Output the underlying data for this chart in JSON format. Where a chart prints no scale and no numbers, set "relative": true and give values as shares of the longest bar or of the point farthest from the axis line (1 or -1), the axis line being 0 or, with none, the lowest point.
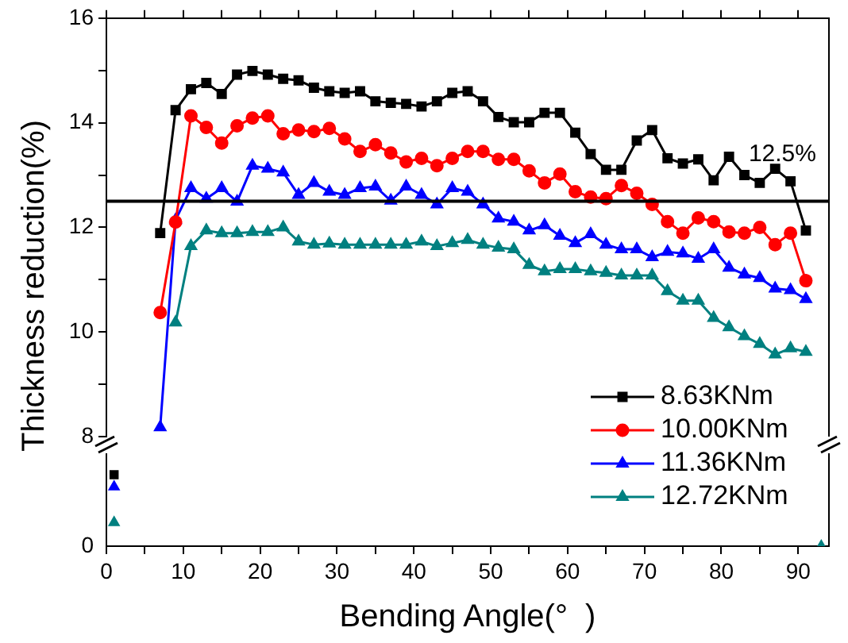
{
  "chart_data": [
    {
      "type": "line",
      "ylabel": "Thickness reduction(%)",
      "legend": "bottom right",
      "tick_labels": "y",
      "grid": false,
      "x": [
        7,
        9,
        11,
        13,
        15,
        17,
        19,
        21,
        23,
        25,
        27,
        29,
        31,
        33,
        35,
        37,
        39,
        41,
        43,
        45,
        47,
        49,
        51,
        53,
        55,
        57,
        59,
        61,
        63,
        65,
        67,
        69,
        71,
        73,
        75,
        77,
        79,
        81,
        83,
        85,
        87,
        89,
        91
      ],
      "xlim": [
        0,
        94
      ],
      "xticks": [
        {
          "value": 0,
          "label": null
        },
        {
          "value": 5,
          "label": null
        },
        {
          "value": 10,
          "label": null
        },
        {
          "value": 15,
          "label": null
        },
        {
          "value": 20,
          "label": null
        },
        {
          "value": 25,
          "label": null
        },
        {
          "value": 30,
          "label": null
        },
        {
          "value": 35,
          "label": null
        },
        {
          "value": 40,
          "label": null
        },
        {
          "value": 45,
          "label": null
        },
        {
          "value": 50,
          "label": null
        },
        {
          "value": 55,
          "label": null
        },
        {
          "value": 60,
          "label": null
        },
        {
          "value": 65,
          "label": null
        },
        {
          "value": 70,
          "label": null
        },
        {
          "value": 75,
          "label": null
        },
        {
          "value": 80,
          "label": null
        },
        {
          "value": 85,
          "label": null
        },
        {
          "value": 90,
          "label": null
        }
      ],
      "ylim": [
        8,
        16
      ],
      "yticks": [
        8,
        {
          "value": 9,
          "label": null
        },
        10,
        {
          "value": 11,
          "label": null
        },
        12,
        {
          "value": 13,
          "label": null
        },
        14,
        {
          "value": 15,
          "label": null
        },
        16
      ],
      "ref_lines": [
        {
          "axis": "y",
          "value": 12.5,
          "label": "12.5%",
          "color": "#000000"
        }
      ],
      "series": [
        {
          "name": "8.63KNm",
          "color": "#000000",
          "marker": "square",
          "values": [
            11.89,
            14.24,
            14.64,
            14.76,
            14.55,
            14.92,
            14.99,
            14.92,
            14.84,
            14.81,
            14.67,
            14.6,
            14.57,
            14.6,
            14.41,
            14.38,
            14.36,
            14.31,
            14.41,
            14.57,
            14.6,
            14.41,
            14.11,
            14.01,
            14.01,
            14.19,
            14.19,
            13.81,
            13.4,
            13.1,
            13.1,
            13.66,
            13.86,
            13.32,
            13.22,
            13.3,
            12.9,
            13.35,
            13.0,
            12.85,
            13.12,
            12.88,
            11.94
          ]
        },
        {
          "name": "10.00KNm",
          "color": "#ff0000",
          "marker": "circle",
          "values": [
            10.37,
            12.1,
            14.13,
            13.91,
            13.61,
            13.94,
            14.09,
            14.13,
            13.79,
            13.86,
            13.83,
            13.89,
            13.69,
            13.45,
            13.58,
            13.42,
            13.25,
            13.32,
            13.18,
            13.32,
            13.45,
            13.45,
            13.3,
            13.3,
            13.08,
            12.85,
            13.02,
            12.68,
            12.58,
            12.55,
            12.8,
            12.65,
            12.44,
            12.11,
            11.89,
            12.18,
            12.11,
            11.91,
            11.89,
            12.0,
            11.67,
            11.89,
            10.98
          ]
        },
        {
          "name": "11.36KNm",
          "color": "#0000ff",
          "marker": "triangle",
          "values": [
            8.18,
            12.14,
            12.75,
            12.55,
            12.75,
            12.49,
            13.18,
            13.12,
            13.05,
            12.62,
            12.85,
            12.68,
            12.62,
            12.75,
            12.78,
            12.51,
            12.78,
            12.62,
            12.44,
            12.75,
            12.68,
            12.44,
            12.17,
            12.11,
            11.94,
            12.04,
            11.84,
            11.7,
            11.87,
            11.67,
            11.58,
            11.58,
            11.43,
            11.53,
            11.5,
            11.4,
            11.58,
            11.23,
            11.1,
            11.03,
            10.83,
            10.8,
            10.63
          ]
        },
        {
          "name": "12.72KNm",
          "color": "#008080",
          "marker": "triangle",
          "values": [
            null,
            10.18,
            11.64,
            11.94,
            11.89,
            11.89,
            11.91,
            11.91,
            12.0,
            11.73,
            11.67,
            11.69,
            11.67,
            11.67,
            11.67,
            11.67,
            11.67,
            11.73,
            11.64,
            11.7,
            11.76,
            11.67,
            11.61,
            11.58,
            11.28,
            11.16,
            11.2,
            11.2,
            11.16,
            11.13,
            11.08,
            11.08,
            11.08,
            10.78,
            10.6,
            10.6,
            10.27,
            10.09,
            9.92,
            9.77,
            9.57,
            9.69,
            9.62
          ]
        }
      ]
    },
    {
      "type": "scatter",
      "xlabel": "Bending Angle(°  )",
      "grid": false,
      "x": [
        1,
        93
      ],
      "xlim": [
        0,
        94
      ],
      "xticks": [
        0,
        {
          "value": 5,
          "label": null
        },
        10,
        {
          "value": 15,
          "label": null
        },
        20,
        {
          "value": 25,
          "label": null
        },
        30,
        {
          "value": 35,
          "label": null
        },
        40,
        {
          "value": 45,
          "label": null
        },
        50,
        {
          "value": 55,
          "label": null
        },
        60,
        {
          "value": 65,
          "label": null
        },
        70,
        {
          "value": 75,
          "label": null
        },
        80,
        {
          "value": 85,
          "label": null
        },
        90
      ],
      "relative": true,
      "annotations": [
        "0"
      ],
      "series": [
        {
          "color": "#000000",
          "marker": "square",
          "values": [
            1,
            null
          ]
        },
        {
          "color": "#ff0000",
          "marker": "circle",
          "values": [
            null,
            null
          ]
        },
        {
          "color": "#0000ff",
          "marker": "triangle",
          "values": [
            0.83,
            null
          ]
        },
        {
          "color": "#008080",
          "marker": "triangle",
          "values": [
            0.33,
            0
          ]
        }
      ]
    }
  ]
}
